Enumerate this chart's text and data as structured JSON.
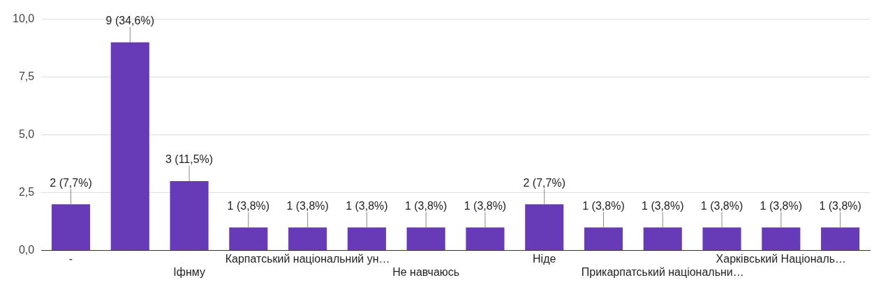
{
  "chart_data": {
    "type": "bar",
    "categories": [
      "-",
      null,
      "Іфнму",
      null,
      "Карпатський національний ун…",
      null,
      "Не навчаюсь",
      null,
      "Ніде",
      null,
      "Прикарпатський національни…",
      null,
      "Харківський Національ…",
      null
    ],
    "values": [
      2,
      9,
      3,
      1,
      1,
      1,
      1,
      1,
      2,
      1,
      1,
      1,
      1,
      1
    ],
    "value_labels": [
      "2 (7,7%)",
      "9 (34,6%)",
      "3 (11,5%)",
      "1 (3,8%)",
      "1 (3,8%)",
      "1 (3,8%)",
      "1 (3,8%)",
      "1 (3,8%)",
      "2 (7,7%)",
      "1 (3,8%)",
      "1 (3,8%)",
      "1 (3,8%)",
      "1 (3,8%)",
      "1 (3,8%)"
    ],
    "color": "#673ab7",
    "ylim": [
      0,
      10
    ],
    "yticks": [
      {
        "value": 0,
        "label": "0,0"
      },
      {
        "value": 2.5,
        "label": "2,5"
      },
      {
        "value": 5,
        "label": "5,0"
      },
      {
        "value": 7.5,
        "label": "7,5"
      },
      {
        "value": 10,
        "label": "10,0"
      }
    ],
    "grid": "y",
    "legend": false
  }
}
